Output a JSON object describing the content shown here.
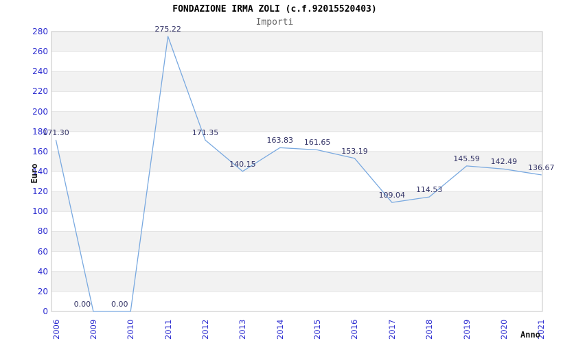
{
  "chart_data": {
    "type": "line",
    "title": "FONDAZIONE IRMA ZOLI (c.f.92015520403)",
    "subtitle": "Importi",
    "xlabel": "Anno",
    "ylabel": "Euro",
    "categories": [
      "2006",
      "2009",
      "2010",
      "2011",
      "2012",
      "2013",
      "2014",
      "2015",
      "2016",
      "2017",
      "2018",
      "2019",
      "2020",
      "2021"
    ],
    "values": [
      171.3,
      0.0,
      0.0,
      275.22,
      171.35,
      140.15,
      163.83,
      161.65,
      153.19,
      109.04,
      114.53,
      145.59,
      142.49,
      136.67
    ],
    "point_labels": [
      "171.30",
      "0.00",
      "0.00",
      "275.22",
      "171.35",
      "140.15",
      "163.83",
      "161.65",
      "153.19",
      "109.04",
      "114.53",
      "145.59",
      "142.49",
      "136.67"
    ],
    "ylim": [
      0,
      280
    ],
    "ytick_step": 20,
    "yticks": [
      0,
      20,
      40,
      60,
      80,
      100,
      120,
      140,
      160,
      180,
      200,
      220,
      240,
      260,
      280
    ],
    "grid": "horizontal-bands",
    "legend": "none",
    "colors": {
      "line": "#79a9e0",
      "tick_label": "#2c2cd0",
      "data_label": "#333366",
      "band_fill": "#f2f2f2",
      "gridline": "#e2e2e2",
      "plot_border": "#c4c4c4",
      "title": "#000000",
      "subtitle": "#666666",
      "axis_title": "#111111",
      "background": "#ffffff"
    }
  }
}
